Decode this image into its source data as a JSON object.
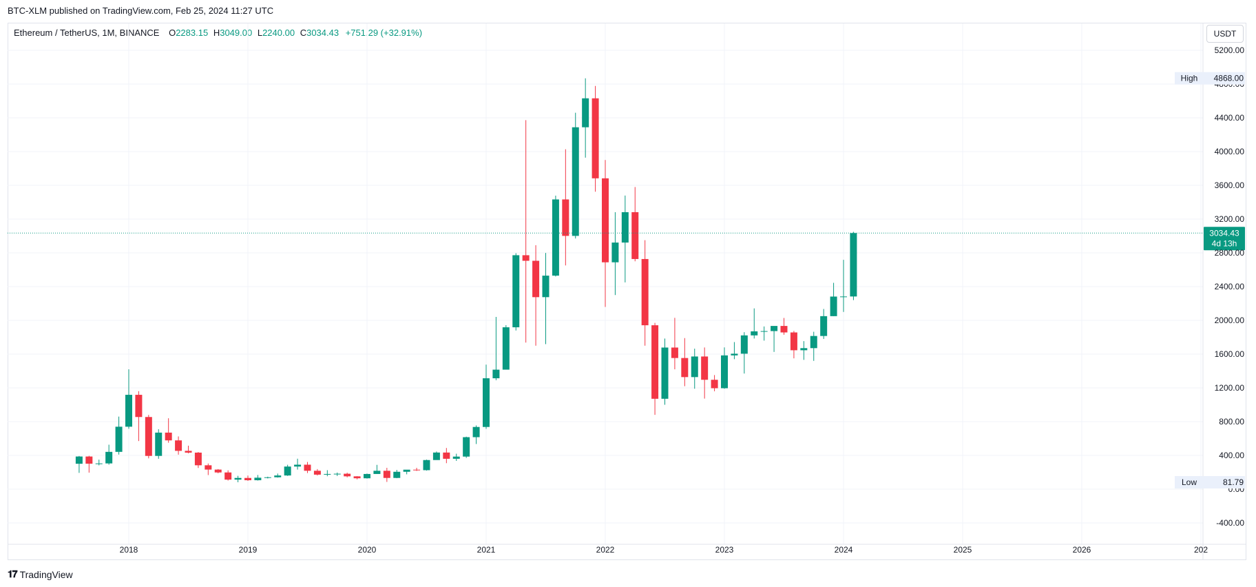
{
  "header": {
    "publisher": "BTC-XLM published on TradingView.com, Feb 25, 2024 11:27 UTC"
  },
  "legend": {
    "symbol": "Ethereum / TetherUS, 1M, BINANCE",
    "o_label": "O",
    "o_value": "2283.15",
    "h_label": "H",
    "h_value": "3049.00",
    "l_label": "L",
    "l_value": "2240.00",
    "c_label": "C",
    "c_value": "3034.43",
    "change": "+751.29 (+32.91%)"
  },
  "currency_button": "USDT",
  "footer": {
    "brand": "TradingView"
  },
  "colors": {
    "up": "#089981",
    "down": "#f23645",
    "grid": "#f0f3fa",
    "axis_text": "#131722"
  },
  "chart_data": {
    "type": "candlestick",
    "y_ticks": [
      "5200.00",
      "4800.00",
      "4400.00",
      "4000.00",
      "3600.00",
      "3200.00",
      "2800.00",
      "2400.00",
      "2000.00",
      "1600.00",
      "1200.00",
      "800.00",
      "400.00",
      "0.00",
      "-400.00"
    ],
    "x_ticks": [
      "2018",
      "2019",
      "2020",
      "2021",
      "2022",
      "2023",
      "2024",
      "2025",
      "2026",
      "202"
    ],
    "ylim": [
      -620,
      5350
    ],
    "high_marker": {
      "label": "High",
      "value": "4868.00"
    },
    "low_marker": {
      "label": "Low",
      "value": "81.79"
    },
    "last_price": {
      "value": "3034.43",
      "countdown": "4d 13h"
    },
    "candles": [
      {
        "t": "2017-08",
        "o": 301,
        "h": 393,
        "l": 193,
        "c": 387
      },
      {
        "t": "2017-09",
        "o": 387,
        "h": 395,
        "l": 196,
        "c": 302
      },
      {
        "t": "2017-10",
        "o": 302,
        "h": 350,
        "l": 282,
        "c": 305
      },
      {
        "t": "2017-11",
        "o": 305,
        "h": 527,
        "l": 290,
        "c": 442
      },
      {
        "t": "2017-12",
        "o": 442,
        "h": 860,
        "l": 410,
        "c": 740
      },
      {
        "t": "2018-01",
        "o": 740,
        "h": 1420,
        "l": 715,
        "c": 1118
      },
      {
        "t": "2018-02",
        "o": 1118,
        "h": 1161,
        "l": 570,
        "c": 855
      },
      {
        "t": "2018-03",
        "o": 855,
        "h": 880,
        "l": 365,
        "c": 394
      },
      {
        "t": "2018-04",
        "o": 394,
        "h": 710,
        "l": 360,
        "c": 670
      },
      {
        "t": "2018-05",
        "o": 670,
        "h": 840,
        "l": 550,
        "c": 578
      },
      {
        "t": "2018-06",
        "o": 578,
        "h": 625,
        "l": 409,
        "c": 454
      },
      {
        "t": "2018-07",
        "o": 454,
        "h": 515,
        "l": 425,
        "c": 433
      },
      {
        "t": "2018-08",
        "o": 433,
        "h": 440,
        "l": 251,
        "c": 283
      },
      {
        "t": "2018-09",
        "o": 283,
        "h": 304,
        "l": 167,
        "c": 232
      },
      {
        "t": "2018-10",
        "o": 232,
        "h": 238,
        "l": 188,
        "c": 198
      },
      {
        "t": "2018-11",
        "o": 198,
        "h": 223,
        "l": 102,
        "c": 113
      },
      {
        "t": "2018-12",
        "o": 113,
        "h": 158,
        "l": 82,
        "c": 133
      },
      {
        "t": "2019-01",
        "o": 133,
        "h": 161,
        "l": 98,
        "c": 106
      },
      {
        "t": "2019-02",
        "o": 106,
        "h": 168,
        "l": 102,
        "c": 136
      },
      {
        "t": "2019-03",
        "o": 136,
        "h": 148,
        "l": 127,
        "c": 141
      },
      {
        "t": "2019-04",
        "o": 141,
        "h": 185,
        "l": 137,
        "c": 162
      },
      {
        "t": "2019-05",
        "o": 162,
        "h": 289,
        "l": 157,
        "c": 268
      },
      {
        "t": "2019-06",
        "o": 268,
        "h": 361,
        "l": 232,
        "c": 290
      },
      {
        "t": "2019-07",
        "o": 290,
        "h": 322,
        "l": 191,
        "c": 218
      },
      {
        "t": "2019-08",
        "o": 218,
        "h": 238,
        "l": 162,
        "c": 172
      },
      {
        "t": "2019-09",
        "o": 172,
        "h": 225,
        "l": 153,
        "c": 180
      },
      {
        "t": "2019-10",
        "o": 180,
        "h": 197,
        "l": 156,
        "c": 183
      },
      {
        "t": "2019-11",
        "o": 183,
        "h": 195,
        "l": 140,
        "c": 152
      },
      {
        "t": "2019-12",
        "o": 152,
        "h": 154,
        "l": 116,
        "c": 129
      },
      {
        "t": "2020-01",
        "o": 129,
        "h": 185,
        "l": 126,
        "c": 180
      },
      {
        "t": "2020-02",
        "o": 180,
        "h": 288,
        "l": 180,
        "c": 218
      },
      {
        "t": "2020-03",
        "o": 218,
        "h": 253,
        "l": 86,
        "c": 133
      },
      {
        "t": "2020-04",
        "o": 133,
        "h": 228,
        "l": 130,
        "c": 206
      },
      {
        "t": "2020-05",
        "o": 206,
        "h": 227,
        "l": 176,
        "c": 231
      },
      {
        "t": "2020-06",
        "o": 231,
        "h": 253,
        "l": 216,
        "c": 225
      },
      {
        "t": "2020-07",
        "o": 225,
        "h": 350,
        "l": 220,
        "c": 345
      },
      {
        "t": "2020-08",
        "o": 345,
        "h": 446,
        "l": 354,
        "c": 434
      },
      {
        "t": "2020-09",
        "o": 434,
        "h": 488,
        "l": 308,
        "c": 360
      },
      {
        "t": "2020-10",
        "o": 360,
        "h": 420,
        "l": 335,
        "c": 386
      },
      {
        "t": "2020-11",
        "o": 386,
        "h": 622,
        "l": 370,
        "c": 616
      },
      {
        "t": "2020-12",
        "o": 616,
        "h": 755,
        "l": 535,
        "c": 737
      },
      {
        "t": "2021-01",
        "o": 737,
        "h": 1476,
        "l": 714,
        "c": 1314
      },
      {
        "t": "2021-02",
        "o": 1314,
        "h": 2041,
        "l": 1291,
        "c": 1416
      },
      {
        "t": "2021-03",
        "o": 1416,
        "h": 1943,
        "l": 1444,
        "c": 1918
      },
      {
        "t": "2021-04",
        "o": 1918,
        "h": 2796,
        "l": 1880,
        "c": 2772
      },
      {
        "t": "2021-05",
        "o": 2772,
        "h": 4372,
        "l": 1737,
        "c": 2706
      },
      {
        "t": "2021-06",
        "o": 2706,
        "h": 2891,
        "l": 1700,
        "c": 2275
      },
      {
        "t": "2021-07",
        "o": 2275,
        "h": 2799,
        "l": 1718,
        "c": 2530
      },
      {
        "t": "2021-08",
        "o": 2530,
        "h": 3478,
        "l": 2520,
        "c": 3433
      },
      {
        "t": "2021-09",
        "o": 3433,
        "h": 4028,
        "l": 2651,
        "c": 3001
      },
      {
        "t": "2021-10",
        "o": 3001,
        "h": 4460,
        "l": 2970,
        "c": 4288
      },
      {
        "t": "2021-11",
        "o": 4288,
        "h": 4868,
        "l": 3928,
        "c": 4631
      },
      {
        "t": "2021-12",
        "o": 4631,
        "h": 4778,
        "l": 3524,
        "c": 3683
      },
      {
        "t": "2022-01",
        "o": 3683,
        "h": 3900,
        "l": 2159,
        "c": 2688
      },
      {
        "t": "2022-02",
        "o": 2688,
        "h": 3282,
        "l": 2300,
        "c": 2922
      },
      {
        "t": "2022-03",
        "o": 2922,
        "h": 3479,
        "l": 2450,
        "c": 3282
      },
      {
        "t": "2022-04",
        "o": 3282,
        "h": 3580,
        "l": 2700,
        "c": 2727
      },
      {
        "t": "2022-05",
        "o": 2727,
        "h": 2950,
        "l": 1700,
        "c": 1942
      },
      {
        "t": "2022-06",
        "o": 1942,
        "h": 1970,
        "l": 881,
        "c": 1071
      },
      {
        "t": "2022-07",
        "o": 1071,
        "h": 1785,
        "l": 1000,
        "c": 1678
      },
      {
        "t": "2022-08",
        "o": 1678,
        "h": 2030,
        "l": 1420,
        "c": 1554
      },
      {
        "t": "2022-09",
        "o": 1554,
        "h": 1790,
        "l": 1220,
        "c": 1328
      },
      {
        "t": "2022-10",
        "o": 1328,
        "h": 1665,
        "l": 1190,
        "c": 1572
      },
      {
        "t": "2022-11",
        "o": 1572,
        "h": 1679,
        "l": 1073,
        "c": 1296
      },
      {
        "t": "2022-12",
        "o": 1296,
        "h": 1352,
        "l": 1160,
        "c": 1196
      },
      {
        "t": "2023-01",
        "o": 1196,
        "h": 1680,
        "l": 1190,
        "c": 1585
      },
      {
        "t": "2023-02",
        "o": 1585,
        "h": 1743,
        "l": 1540,
        "c": 1605
      },
      {
        "t": "2023-03",
        "o": 1605,
        "h": 1860,
        "l": 1370,
        "c": 1822
      },
      {
        "t": "2023-04",
        "o": 1822,
        "h": 2142,
        "l": 1785,
        "c": 1870
      },
      {
        "t": "2023-05",
        "o": 1870,
        "h": 1928,
        "l": 1760,
        "c": 1873
      },
      {
        "t": "2023-06",
        "o": 1873,
        "h": 1928,
        "l": 1626,
        "c": 1934
      },
      {
        "t": "2023-07",
        "o": 1934,
        "h": 2029,
        "l": 1830,
        "c": 1857
      },
      {
        "t": "2023-08",
        "o": 1857,
        "h": 1875,
        "l": 1550,
        "c": 1646
      },
      {
        "t": "2023-09",
        "o": 1646,
        "h": 1754,
        "l": 1532,
        "c": 1671
      },
      {
        "t": "2023-10",
        "o": 1671,
        "h": 1865,
        "l": 1520,
        "c": 1815
      },
      {
        "t": "2023-11",
        "o": 1815,
        "h": 2135,
        "l": 1780,
        "c": 2050
      },
      {
        "t": "2023-12",
        "o": 2050,
        "h": 2445,
        "l": 2050,
        "c": 2282
      },
      {
        "t": "2024-01",
        "o": 2282,
        "h": 2717,
        "l": 2100,
        "c": 2283
      },
      {
        "t": "2024-02",
        "o": 2283,
        "h": 3049,
        "l": 2240,
        "c": 3034
      }
    ]
  }
}
